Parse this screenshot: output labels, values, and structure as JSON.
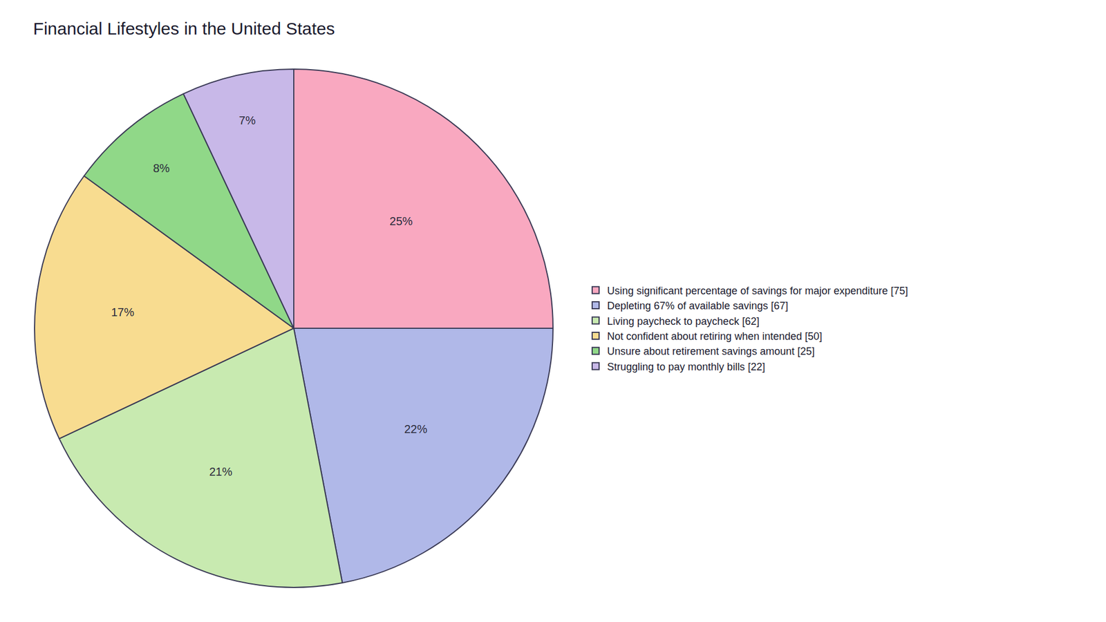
{
  "chart_data": {
    "type": "pie",
    "title": "Financial Lifestyles in the United States",
    "categories": [
      "Using significant percentage of savings for major expenditure [75]",
      "Depleting 67% of available savings [67]",
      "Living paycheck to paycheck [62]",
      "Not confident about retiring when intended [50]",
      "Unsure about retirement savings amount [25]",
      "Struggling to pay monthly bills [22]"
    ],
    "values": [
      25,
      22,
      21,
      17,
      8,
      7
    ],
    "value_labels": [
      "25%",
      "22%",
      "21%",
      "17%",
      "8%",
      "7%"
    ],
    "colors": [
      "#F9A8C0",
      "#B0B8E8",
      "#C8EAB0",
      "#F8DC90",
      "#90D888",
      "#C8B8E8"
    ],
    "data_labels": true,
    "legend": "right"
  }
}
